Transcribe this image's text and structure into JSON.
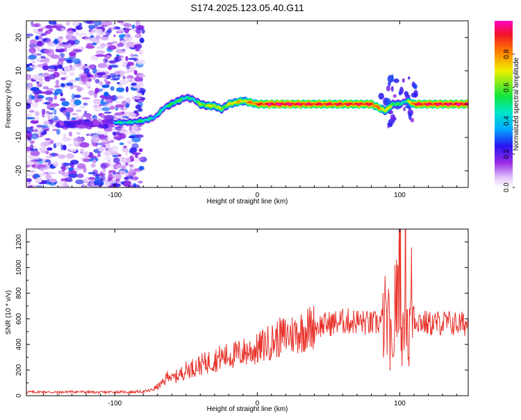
{
  "title": "S174.2025.123.05.40.G11",
  "colors": {
    "snr_line": "#e8312a",
    "axis": "#000000"
  },
  "chart_data": [
    {
      "type": "heatmap",
      "title": "S174.2025.123.05.40.G11",
      "xlabel": "Height of straight line (km)",
      "ylabel": "Frequency (Hz)",
      "xlim": [
        -162,
        148
      ],
      "ylim": [
        -25,
        25
      ],
      "xticks": [
        -100,
        0,
        100
      ],
      "xtick_labels": [
        "-100",
        "0",
        "100"
      ],
      "yticks": [
        -20,
        -10,
        0,
        10,
        20
      ],
      "ytick_labels": [
        "-20",
        "-10",
        "0",
        "10",
        "20"
      ],
      "colorbar": {
        "label": "Normalized spectral amplitude",
        "range": [
          0,
          1
        ],
        "ticks": [
          0.0,
          0.2,
          0.4,
          0.6,
          0.8
        ],
        "tick_labels": [
          "0.0",
          "0.2",
          "0.4",
          "0.6",
          "0.8"
        ],
        "colormap": "rainbow (white - purple - blue - cyan - green - yellow - red - magenta)"
      },
      "ridge": {
        "description": "dominant frequency ridge vs height",
        "height_km": [
          -100,
          -90,
          -80,
          -72,
          -65,
          -58,
          -50,
          -45,
          -40,
          -35,
          -30,
          -25,
          -20,
          -15,
          -10,
          -5,
          0,
          10,
          20,
          40,
          60,
          80,
          90,
          95,
          100,
          105,
          110,
          148
        ],
        "frequency_hz": [
          -5.5,
          -5.5,
          -5,
          -4,
          -1,
          0.5,
          2,
          1.5,
          0,
          -0.5,
          -0.5,
          -1.5,
          0,
          0.5,
          1,
          0.5,
          0,
          0,
          0,
          0,
          0,
          0,
          -2,
          0,
          0,
          1,
          0,
          0
        ],
        "amplitude": [
          0.45,
          0.45,
          0.5,
          0.4,
          0.45,
          0.55,
          0.5,
          0.45,
          0.6,
          0.65,
          0.7,
          0.6,
          0.65,
          0.75,
          0.7,
          0.8,
          0.85,
          0.95,
          0.95,
          0.9,
          0.9,
          0.9,
          0.7,
          0.6,
          0.5,
          0.5,
          0.9,
          0.95
        ]
      },
      "noise_region_km": [
        -162,
        -80
      ]
    },
    {
      "type": "line",
      "xlabel": "Height of straight line (km)",
      "ylabel": "SNR (10 * v/v)",
      "xlim": [
        -162,
        148
      ],
      "ylim": [
        0,
        1300
      ],
      "xticks": [
        -100,
        0,
        100
      ],
      "xtick_labels": [
        "-100",
        "0",
        "100"
      ],
      "yticks": [
        0,
        200,
        400,
        600,
        800,
        1000,
        1200
      ],
      "ytick_labels": [
        "0",
        "200",
        "400",
        "600",
        "800",
        "1000",
        "1200"
      ],
      "series": [
        {
          "x": [
            -162,
            -150,
            -140,
            -130,
            -120,
            -110,
            -100,
            -90,
            -80,
            -75,
            -70,
            -65,
            -62,
            -60,
            -55,
            -50,
            -45,
            -40,
            -35,
            -30,
            -25,
            -20,
            -15,
            -10,
            -5,
            0,
            5,
            10,
            15,
            20,
            25,
            30,
            40,
            50,
            60,
            70,
            80,
            85,
            90,
            93,
            95,
            97,
            98,
            100,
            102,
            104,
            106,
            108,
            110,
            115,
            120,
            130,
            140,
            148
          ],
          "y": [
            28,
            30,
            26,
            32,
            28,
            25,
            30,
            28,
            32,
            40,
            70,
            110,
            180,
            130,
            160,
            200,
            220,
            240,
            260,
            280,
            300,
            310,
            320,
            340,
            350,
            360,
            400,
            420,
            450,
            470,
            480,
            500,
            540,
            560,
            580,
            580,
            560,
            570,
            600,
            500,
            200,
            900,
            600,
            1250,
            300,
            1200,
            300,
            800,
            600,
            580,
            560,
            570,
            560,
            560
          ]
        }
      ]
    }
  ]
}
